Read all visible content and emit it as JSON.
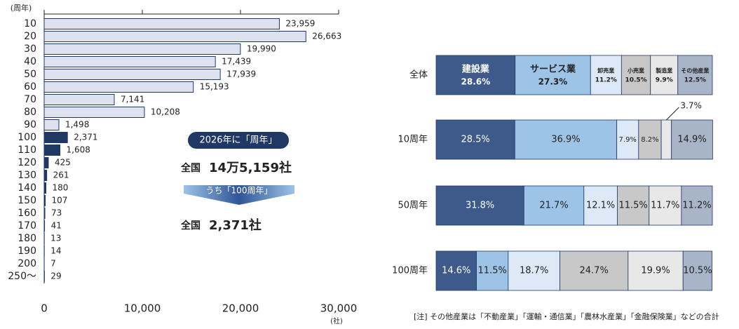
{
  "chart_data": [
    {
      "type": "hbar",
      "y_label": "(周年)",
      "x_label": "(社)",
      "categories": [
        "10",
        "20",
        "30",
        "40",
        "50",
        "60",
        "70",
        "80",
        "90",
        "100",
        "110",
        "120",
        "130",
        "140",
        "150",
        "160",
        "170",
        "180",
        "190",
        "200",
        "250～"
      ],
      "values": [
        23959,
        26663,
        19990,
        17439,
        17939,
        15193,
        7141,
        10208,
        1498,
        2371,
        1608,
        425,
        261,
        180,
        107,
        73,
        41,
        13,
        14,
        7,
        29
      ],
      "value_labels": [
        "23,959",
        "26,663",
        "19,990",
        "17,439",
        "17,939",
        "15,193",
        "7,141",
        "10,208",
        "1,498",
        "2,371",
        "1,608",
        "425",
        "261",
        "180",
        "107",
        "73",
        "41",
        "13",
        "14",
        "7",
        "29"
      ],
      "colors": [
        "#dde2ee",
        "#dde2ee",
        "#dde2ee",
        "#dde2ee",
        "#dde2ee",
        "#dde2ee",
        "#dde2ee",
        "#dde2ee",
        "#dde2ee",
        "#1f3864",
        "#1f3864",
        "#1f3864",
        "#1f3864",
        "#1f3864",
        "#1f3864",
        "#1f3864",
        "#1f3864",
        "#1f3864",
        "#1f3864",
        "#1f3864",
        "#1f3864"
      ],
      "edgecolor": "#1f3864",
      "xlim": [
        0,
        30000
      ],
      "xticks": [
        0,
        {
          "value": 10000,
          "label": "10,000"
        },
        {
          "value": 20000,
          "label": "20,000"
        },
        {
          "value": 30000,
          "label": "30,000"
        }
      ],
      "annotations": {
        "badge": "2026年に「周年」",
        "total_label": "全国",
        "total_value": "14万5,159社",
        "arrow": "うち「100周年」",
        "sub_label": "全国",
        "sub_value": "2,371社"
      }
    },
    {
      "type": "stacked_hbar",
      "categories": [
        "全体",
        "10周年",
        "50周年",
        "100周年"
      ],
      "xlim": [
        0,
        100
      ],
      "series": [
        {
          "name": "建設業",
          "color": "#3d5a8a",
          "values": [
            28.6,
            28.5,
            31.8,
            14.6
          ],
          "value_labels": [
            "28.6%",
            "28.5%",
            "31.8%",
            "14.6%"
          ]
        },
        {
          "name": "サービス業",
          "color": "#9dc3e6",
          "values": [
            27.3,
            36.9,
            21.7,
            11.5
          ],
          "value_labels": [
            "27.3%",
            "36.9%",
            "21.7%",
            "11.5%"
          ]
        },
        {
          "name": "卸売業",
          "color": "#dde9f6",
          "values": [
            11.2,
            7.9,
            12.1,
            18.7
          ],
          "value_labels": [
            "11.2%",
            "7.9%",
            "12.1%",
            "18.7%"
          ]
        },
        {
          "name": "小売業",
          "color": "#c8c8c8",
          "values": [
            10.5,
            8.2,
            11.5,
            24.7
          ],
          "value_labels": [
            "10.5%",
            "8.2%",
            "11.5%",
            "24.7%"
          ]
        },
        {
          "name": "製造業",
          "color": "#e8e8e8",
          "values": [
            9.9,
            3.7,
            11.7,
            19.9
          ],
          "value_labels": [
            "9.9%",
            "3.7%",
            "11.7%",
            "19.9%"
          ]
        },
        {
          "name": "その他産業",
          "color": "#a8b4c8",
          "values": [
            12.5,
            14.9,
            11.2,
            10.5
          ],
          "value_labels": [
            "12.5%",
            "14.9%",
            "11.2%",
            "10.5%"
          ]
        }
      ],
      "note": "[注] その他産業は「不動産業」「運輸・通信業」「農林水産業」「金融保険業」などの合計"
    }
  ]
}
